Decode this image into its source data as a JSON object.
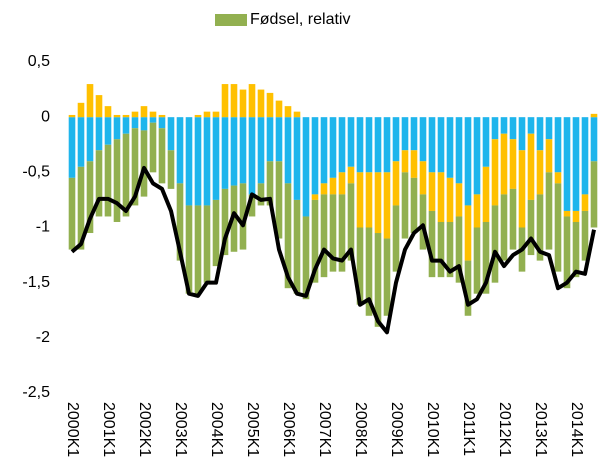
{
  "chart_data": {
    "type": "bar",
    "stacked": true,
    "categories": [
      "2000K1",
      null,
      null,
      null,
      "2001K1",
      null,
      null,
      null,
      "2002K1",
      null,
      null,
      null,
      "2003K1",
      null,
      null,
      null,
      "2004K1",
      null,
      null,
      null,
      "2005K1",
      null,
      null,
      null,
      "2006K1",
      null,
      null,
      null,
      "2007K1",
      null,
      null,
      null,
      "2008K1",
      null,
      null,
      null,
      "2009K1",
      null,
      null,
      null,
      "2010K1",
      null,
      null,
      null,
      "2011K1",
      null,
      null,
      null,
      "2012K1",
      null,
      null,
      null,
      "2013K1",
      null,
      null,
      null,
      "2014K1",
      null,
      null
    ],
    "series": [
      {
        "color": "#1fb5ec",
        "values": [
          -0.55,
          -0.45,
          -0.4,
          -0.3,
          -0.25,
          -0.2,
          -0.15,
          -0.1,
          -0.12,
          -0.05,
          -0.1,
          -0.3,
          -0.6,
          -0.8,
          -0.8,
          -0.8,
          -0.75,
          -0.65,
          -0.62,
          -0.6,
          -0.7,
          -0.6,
          -0.4,
          -0.4,
          -0.6,
          -0.75,
          -0.9,
          -0.7,
          -0.6,
          -0.55,
          -0.5,
          -0.45,
          -0.5,
          -0.5,
          -0.5,
          -0.5,
          -0.4,
          -0.3,
          -0.3,
          -0.4,
          -0.5,
          -0.5,
          -0.55,
          -0.6,
          -0.8,
          -0.7,
          -0.45,
          -0.2,
          -0.15,
          -0.2,
          -0.3,
          -0.15,
          -0.3,
          -0.2,
          -0.5,
          -0.85,
          -0.85,
          -0.7,
          -0.4
        ]
      },
      {
        "color": "#ffc000",
        "values": [
          0.02,
          0.13,
          0.3,
          0.2,
          0.1,
          0.02,
          0.02,
          0.05,
          0.1,
          0.05,
          0.02,
          0.0,
          0.0,
          0.0,
          0.02,
          0.05,
          0.05,
          0.3,
          0.3,
          0.25,
          0.3,
          0.25,
          0.22,
          0.15,
          0.1,
          0.05,
          0.0,
          -0.05,
          -0.1,
          -0.15,
          -0.2,
          -0.15,
          -0.5,
          -0.5,
          -0.55,
          -0.6,
          -0.4,
          -0.2,
          -0.25,
          -0.3,
          -0.35,
          -0.45,
          -0.4,
          -0.3,
          -0.5,
          -0.3,
          -0.5,
          -0.6,
          -0.55,
          -0.45,
          -0.7,
          -0.6,
          -0.4,
          -0.3,
          -0.1,
          -0.05,
          -0.1,
          -0.15,
          0.03
        ]
      },
      {
        "name": "Fødsel, relativ",
        "color": "#92b050",
        "values": [
          -0.65,
          -0.75,
          -0.65,
          -0.6,
          -0.65,
          -0.75,
          -0.75,
          -0.7,
          -0.6,
          -0.45,
          -0.5,
          -0.35,
          -0.7,
          -0.8,
          -0.8,
          -0.7,
          -0.6,
          -0.6,
          -0.6,
          -0.6,
          -0.2,
          -0.2,
          -0.4,
          -0.7,
          -0.95,
          -0.85,
          -0.75,
          -0.75,
          -0.75,
          -0.7,
          -0.7,
          -0.7,
          -0.7,
          -0.8,
          -0.85,
          -0.7,
          -0.6,
          -0.6,
          -0.5,
          -0.5,
          -0.6,
          -0.5,
          -0.5,
          -0.6,
          -0.5,
          -0.6,
          -0.65,
          -0.7,
          -0.6,
          -0.55,
          -0.4,
          -0.5,
          -0.6,
          -0.7,
          -0.8,
          -0.65,
          -0.5,
          -0.45,
          -0.6
        ]
      },
      {
        "type": "line",
        "color": "#000000",
        "values": [
          -1.22,
          -1.15,
          -0.92,
          -0.74,
          -0.74,
          -0.78,
          -0.85,
          -0.72,
          -0.46,
          -0.6,
          -0.65,
          -0.85,
          -1.22,
          -1.6,
          -1.62,
          -1.5,
          -1.5,
          -1.1,
          -0.87,
          -0.98,
          -0.7,
          -0.75,
          -0.74,
          -1.2,
          -1.45,
          -1.6,
          -1.62,
          -1.38,
          -1.2,
          -1.28,
          -1.3,
          -1.2,
          -1.7,
          -1.65,
          -1.85,
          -1.95,
          -1.5,
          -1.2,
          -1.05,
          -0.98,
          -1.3,
          -1.3,
          -1.4,
          -1.35,
          -1.7,
          -1.65,
          -1.5,
          -1.22,
          -1.35,
          -1.25,
          -1.2,
          -1.1,
          -1.22,
          -1.25,
          -1.55,
          -1.5,
          -1.4,
          -1.42,
          -1.02
        ]
      }
    ],
    "ylim": [
      -2.5,
      0.5
    ],
    "yticks": [
      {
        "value": 0.5,
        "label": "0,5"
      },
      0,
      {
        "value": -0.5,
        "label": "-0,5"
      },
      -1,
      {
        "value": -1.5,
        "label": "-1,5"
      },
      -2,
      {
        "value": -2.5,
        "label": "-2,5"
      }
    ],
    "grid": false,
    "legend": "top"
  }
}
